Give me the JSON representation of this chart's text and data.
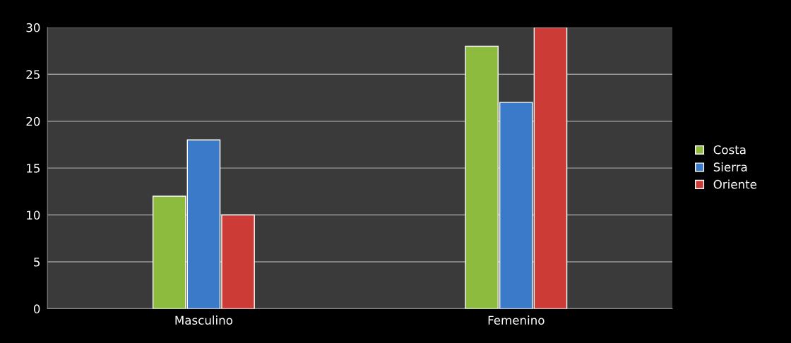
{
  "chart_data": {
    "type": "bar",
    "categories": [
      "Masculino",
      "Femenino"
    ],
    "series": [
      {
        "name": "Costa",
        "color": "#8dbb3e",
        "values": [
          12,
          28
        ]
      },
      {
        "name": "Sierra",
        "color": "#3b79c9",
        "values": [
          18,
          22
        ]
      },
      {
        "name": "Oriente",
        "color": "#cc3b36",
        "values": [
          10,
          30
        ]
      }
    ],
    "ylim": [
      0,
      30
    ],
    "yticks": [
      0,
      5,
      10,
      15,
      20,
      25,
      30
    ],
    "grid": "y",
    "legend": "right"
  }
}
